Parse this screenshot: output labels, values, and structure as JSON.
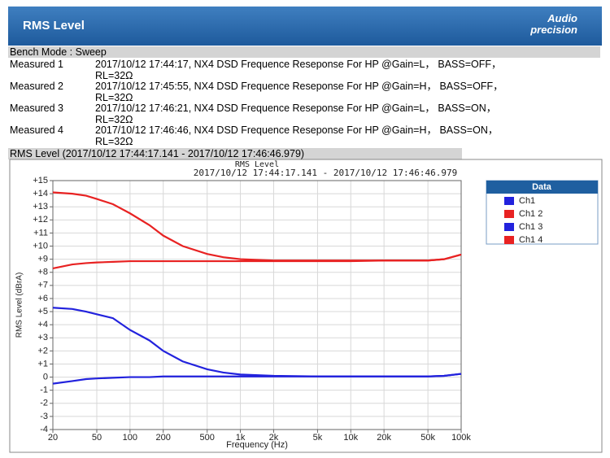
{
  "header": {
    "title": "RMS Level",
    "logo_top": "Audio",
    "logo_bottom": "precision"
  },
  "bench_mode": "Bench Mode : Sweep",
  "measurements": [
    {
      "label": "Measured 1",
      "text": "2017/10/12 17:44:17, NX4 DSD Frequence Reseponse For HP @Gain=L， BASS=OFF， RL=32Ω"
    },
    {
      "label": "Measured 2",
      "text": "2017/10/12 17:45:55, NX4 DSD Frequence Reseponse For HP @Gain=H， BASS=OFF， RL=32Ω"
    },
    {
      "label": "Measured 3",
      "text": "2017/10/12 17:46:21, NX4 DSD Frequence Reseponse For HP @Gain=L， BASS=ON， RL=32Ω"
    },
    {
      "label": "Measured 4",
      "text": "2017/10/12 17:46:46, NX4 DSD Frequence Reseponse For HP @Gain=H， BASS=ON， RL=32Ω"
    }
  ],
  "section_title": "RMS Level (2017/10/12 17:44:17.141 - 2017/10/12 17:46:46.979)",
  "chart_data": {
    "type": "line",
    "title": "RMS Level",
    "subtitle": "2017/10/12 17:44:17.141 - 2017/10/12 17:46:46.979",
    "x_label": "Frequency (Hz)",
    "y_label": "RMS Level (dBrA)",
    "xscale": "log",
    "grid": true,
    "legend_title": "Data",
    "legend_position": "right",
    "xlim": [
      20,
      100000
    ],
    "xticks": [
      20,
      50,
      100,
      200,
      500,
      {
        "value": 1000,
        "label": "1k"
      },
      {
        "value": 2000,
        "label": "2k"
      },
      {
        "value": 5000,
        "label": "5k"
      },
      {
        "value": 10000,
        "label": "10k"
      },
      {
        "value": 20000,
        "label": "20k"
      },
      {
        "value": 50000,
        "label": "50k"
      },
      {
        "value": 100000,
        "label": "100k"
      }
    ],
    "ylim": [
      -4,
      15
    ],
    "yticks": [
      {
        "value": 15,
        "label": "+15"
      },
      {
        "value": 14,
        "label": "+14"
      },
      {
        "value": 13,
        "label": "+13"
      },
      {
        "value": 12,
        "label": "+12"
      },
      {
        "value": 11,
        "label": "+11"
      },
      {
        "value": 10,
        "label": "+10"
      },
      {
        "value": 9,
        "label": "+9"
      },
      {
        "value": 8,
        "label": "+8"
      },
      {
        "value": 7,
        "label": "+7"
      },
      {
        "value": 6,
        "label": "+6"
      },
      {
        "value": 5,
        "label": "+5"
      },
      {
        "value": 4,
        "label": "+4"
      },
      {
        "value": 3,
        "label": "+3"
      },
      {
        "value": 2,
        "label": "+2"
      },
      {
        "value": 1,
        "label": "+1"
      },
      0,
      -1,
      -2,
      -3,
      -4
    ],
    "x": [
      20,
      30,
      40,
      50,
      70,
      100,
      150,
      200,
      300,
      500,
      700,
      1000,
      2000,
      5000,
      10000,
      20000,
      50000,
      70000,
      100000
    ],
    "series": [
      {
        "name": "Ch1",
        "color": "#2222dd",
        "values": [
          -0.5,
          -0.3,
          -0.15,
          -0.1,
          -0.05,
          0,
          0,
          0.05,
          0.05,
          0.05,
          0.05,
          0.05,
          0.05,
          0.05,
          0.05,
          0.05,
          0.05,
          0.1,
          0.25
        ]
      },
      {
        "name": "Ch1 2",
        "color": "#e82222",
        "values": [
          8.3,
          8.6,
          8.7,
          8.75,
          8.8,
          8.85,
          8.85,
          8.85,
          8.85,
          8.85,
          8.85,
          8.85,
          8.85,
          8.85,
          8.85,
          8.9,
          8.9,
          9.0,
          9.35
        ]
      },
      {
        "name": "Ch1 3",
        "color": "#2222dd",
        "values": [
          5.3,
          5.2,
          5.0,
          4.8,
          4.5,
          3.6,
          2.8,
          2.0,
          1.2,
          0.6,
          0.35,
          0.2,
          0.1,
          0.05,
          0.05,
          0.05,
          0.05,
          0.1,
          0.25
        ]
      },
      {
        "name": "Ch1 4",
        "color": "#e82222",
        "values": [
          14.1,
          14.0,
          13.85,
          13.6,
          13.2,
          12.5,
          11.6,
          10.8,
          10.0,
          9.4,
          9.15,
          9.0,
          8.9,
          8.9,
          8.9,
          8.9,
          8.9,
          9.0,
          9.35
        ]
      }
    ]
  }
}
